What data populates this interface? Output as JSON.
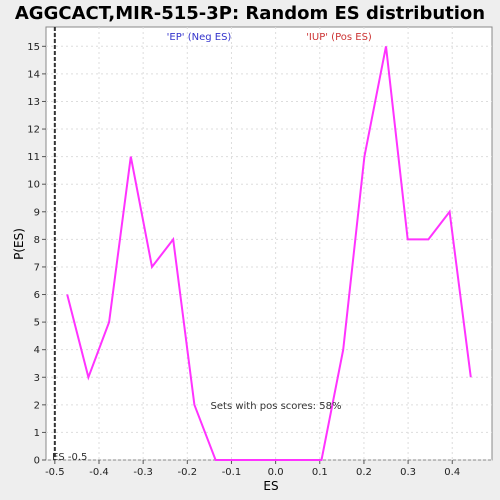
{
  "chart_data": {
    "type": "line",
    "title": "AGGCACT,MIR-515-3P: Random ES distribution",
    "xlabel": "ES",
    "ylabel": "P(ES)",
    "xlim": [
      -0.52,
      0.49
    ],
    "ylim": [
      0,
      15.7
    ],
    "x_ticks": [
      -0.5,
      -0.4,
      -0.3,
      -0.2,
      -0.1,
      0.0,
      0.1,
      0.2,
      0.3,
      0.4
    ],
    "x_tick_labels": [
      "-0.5",
      "-0.4",
      "-0.3",
      "-0.2",
      "-0.1",
      "0.0",
      "0.1",
      "0.2",
      "0.3",
      "0.4"
    ],
    "y_ticks": [
      0,
      1,
      2,
      3,
      4,
      5,
      6,
      7,
      8,
      9,
      10,
      11,
      12,
      13,
      14,
      15
    ],
    "y_tick_labels": [
      "0",
      "1",
      "2",
      "3",
      "4",
      "5",
      "6",
      "7",
      "8",
      "9",
      "10",
      "11",
      "12",
      "13",
      "14",
      "15"
    ],
    "grid": true,
    "series": [
      {
        "color": "#ff33ff",
        "x": [
          -0.472,
          -0.424,
          -0.377,
          -0.328,
          -0.28,
          -0.232,
          -0.184,
          -0.136,
          -0.088,
          -0.04,
          0.008,
          0.056,
          0.104,
          0.153,
          0.201,
          0.25,
          0.299,
          0.346,
          0.394,
          0.442
        ],
        "y": [
          6,
          3,
          5,
          11,
          7,
          8,
          2,
          0,
          0,
          0,
          0,
          0,
          0,
          4,
          11,
          15,
          8,
          8,
          9,
          3
        ]
      }
    ],
    "es_marker": {
      "x": -0.5,
      "label": "ES -0.5",
      "color": "#333333"
    },
    "annotations": {
      "neg_label": "'EP' (Neg ES)",
      "neg_color": "#3333cc",
      "pos_label": "'IUP' (Pos ES)",
      "pos_color": "#cc3333",
      "pos_scores_label": "Sets with pos scores: 58%"
    }
  }
}
